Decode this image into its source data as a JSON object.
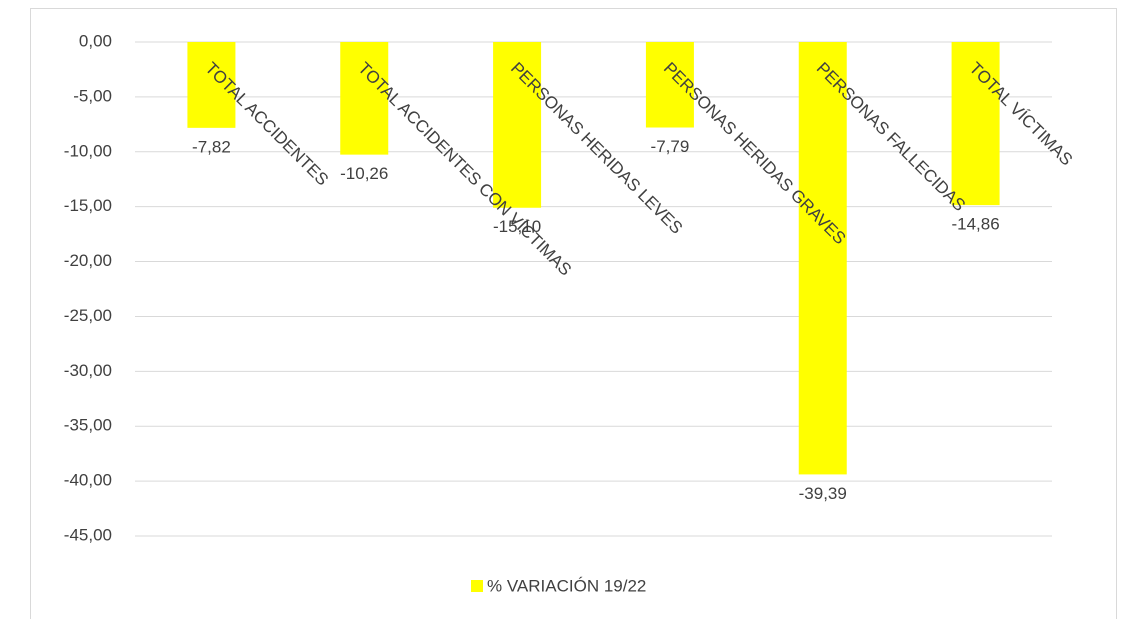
{
  "chart_data": {
    "type": "bar",
    "categories": [
      "TOTAL ACCIDENTES",
      "TOTAL ACCIDENTES CON VÍCTIMAS",
      "PERSONAS HERIDAS LEVES",
      "PERSONAS HERIDAS GRAVES",
      "PERSONAS FALLECIDAS",
      "TOTAL VÍCTIMAS"
    ],
    "series": [
      {
        "name": "% VARIACIÓN 19/22",
        "color": "#ffff00",
        "values": [
          -7.82,
          -10.26,
          -15.1,
          -7.79,
          -39.39,
          -14.86
        ],
        "value_labels": [
          "-7,82",
          "-10,26",
          "-15,10",
          "-7,79",
          "-39,39",
          "-14,86"
        ]
      }
    ],
    "ylim": [
      -45,
      0
    ],
    "yticks": [
      {
        "value": 0,
        "label": "0,00"
      },
      {
        "value": -5,
        "label": "-5,00"
      },
      {
        "value": -10,
        "label": "-10,00"
      },
      {
        "value": -15,
        "label": "-15,00"
      },
      {
        "value": -20,
        "label": "-20,00"
      },
      {
        "value": -25,
        "label": "-25,00"
      },
      {
        "value": -30,
        "label": "-30,00"
      },
      {
        "value": -35,
        "label": "-35,00"
      },
      {
        "value": -40,
        "label": "-40,00"
      },
      {
        "value": -45,
        "label": "-45,00"
      }
    ],
    "grid": true,
    "legend": "bottom"
  }
}
